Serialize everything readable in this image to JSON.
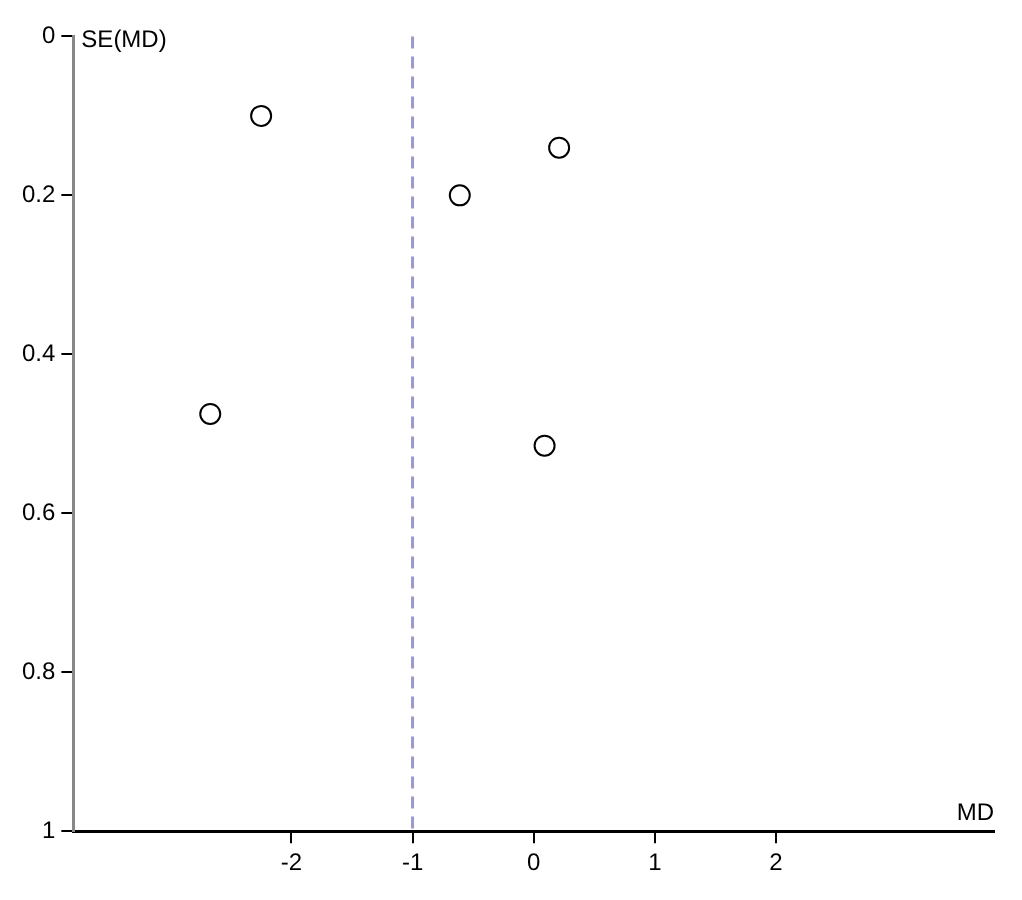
{
  "chart_data": {
    "type": "scatter",
    "xlabel": "MD",
    "ylabel": "SE(MD)",
    "x": [
      -2.25,
      0.21,
      -0.61,
      -2.67,
      0.09
    ],
    "series": [
      {
        "color": "#000000",
        "values": [
          0.1,
          0.14,
          0.2,
          0.475,
          0.515
        ]
      }
    ],
    "marker": "circle",
    "xlim": [
      -3.8,
      3.8
    ],
    "xticks": [
      -2,
      -1,
      0,
      1,
      2
    ],
    "ylim": [
      1,
      0
    ],
    "yticks": [
      0,
      0.2,
      0.4,
      0.6,
      0.8,
      1
    ],
    "ref_lines": [
      {
        "axis": "x",
        "value": -1,
        "color": "#9999cc",
        "line_style": "dashed"
      }
    ],
    "grid": false,
    "legend": false
  }
}
